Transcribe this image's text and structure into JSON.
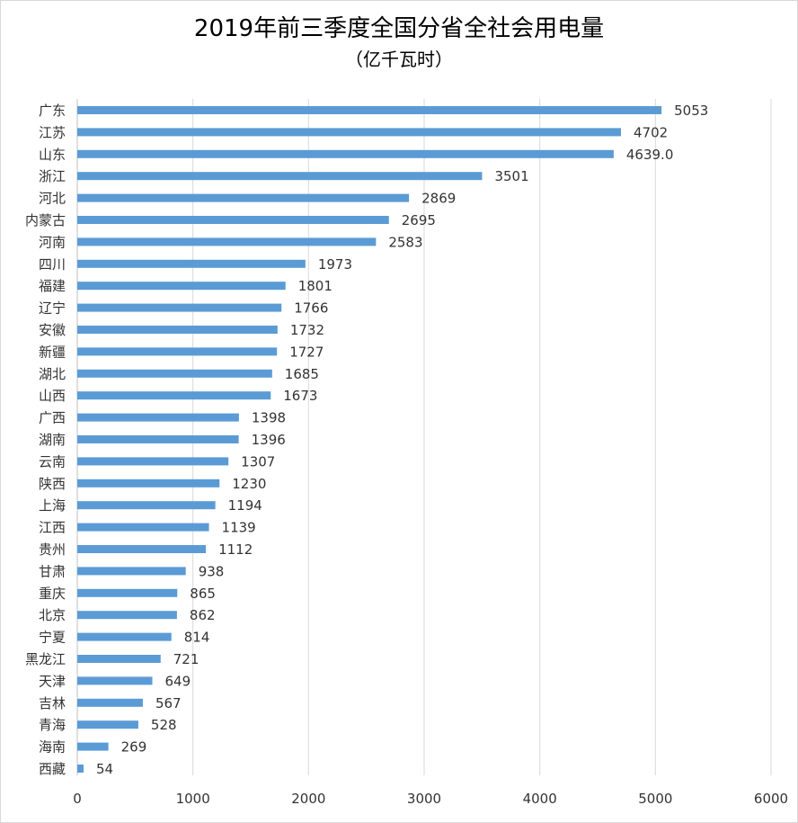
{
  "chart_data": {
    "type": "bar",
    "orientation": "horizontal",
    "title": "2019年前三季度全国分省全社会用电量",
    "subtitle": "（亿千瓦时）",
    "xlim": [
      0,
      6000
    ],
    "xticks": [
      "0",
      "1000",
      "2000",
      "3000",
      "4000",
      "5000",
      "6000"
    ],
    "grid": true,
    "bar_color": "#5b9bd5",
    "categories": [
      "广东",
      "江苏",
      "山东",
      "浙江",
      "河北",
      "内蒙古",
      "河南",
      "四川",
      "福建",
      "辽宁",
      "安徽",
      "新疆",
      "湖北",
      "山西",
      "广西",
      "湖南",
      "云南",
      "陕西",
      "上海",
      "江西",
      "贵州",
      "甘肃",
      "重庆",
      "北京",
      "宁夏",
      "黑龙江",
      "天津",
      "吉林",
      "青海",
      "海南",
      "西藏"
    ],
    "values": [
      5053,
      4702,
      4639.0,
      3501,
      2869,
      2695,
      2583,
      1973,
      1801,
      1766,
      1732,
      1727,
      1685,
      1673,
      1398,
      1396,
      1307,
      1230,
      1194,
      1139,
      1112,
      938,
      865,
      862,
      814,
      721,
      649,
      567,
      528,
      269,
      54
    ],
    "value_labels": [
      "5053",
      "4702",
      "4639.0",
      "3501",
      "2869",
      "2695",
      "2583",
      "1973",
      "1801",
      "1766",
      "1732",
      "1727",
      "1685",
      "1673",
      "1398",
      "1396",
      "1307",
      "1230",
      "1194",
      "1139",
      "1112",
      "938",
      "865",
      "862",
      "814",
      "721",
      "649",
      "567",
      "528",
      "269",
      "54"
    ]
  }
}
